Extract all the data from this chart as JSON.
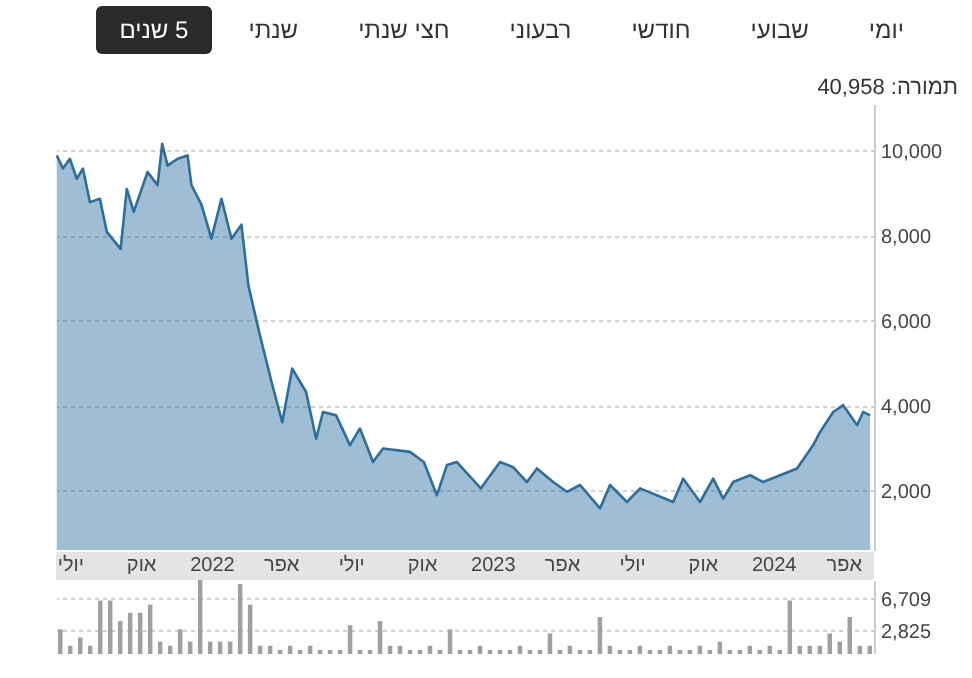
{
  "chart_data": [
    {
      "type": "area",
      "annotations": [
        "יומי",
        "שבועי",
        "חודשי",
        "רבעוני",
        "חצי שנתי",
        "שנתי",
        "5 שנים",
        "תמורה: 40,958"
      ],
      "x": [
        "2021-06-14",
        "2021-06-22",
        "2021-07-01",
        "2021-07-10",
        "2021-07-18",
        "2021-07-27",
        "2021-08-09",
        "2021-08-18",
        "2021-09-05",
        "2021-09-13",
        "2021-09-22",
        "2021-10-10",
        "2021-10-23",
        "2021-10-29",
        "2021-11-05",
        "2021-11-18",
        "2021-12-01",
        "2021-12-06",
        "2021-12-19",
        "2022-01-01",
        "2022-01-14",
        "2022-01-27",
        "2022-02-09",
        "2022-02-18",
        "2022-03-04",
        "2022-03-21",
        "2022-04-03",
        "2022-04-16",
        "2022-05-04",
        "2022-05-17",
        "2022-05-26",
        "2022-06-12",
        "2022-06-30",
        "2022-07-13",
        "2022-07-30",
        "2022-08-12",
        "2022-09-16",
        "2022-10-04",
        "2022-10-21",
        "2022-11-03",
        "2022-11-16",
        "2022-12-17",
        "2023-01-11",
        "2023-01-28",
        "2023-02-15",
        "2023-02-28",
        "2023-03-21",
        "2023-04-08",
        "2023-04-25",
        "2023-05-21",
        "2023-06-03",
        "2023-06-25",
        "2023-07-12",
        "2023-08-24",
        "2023-09-06",
        "2023-09-28",
        "2023-10-15",
        "2023-10-28",
        "2023-11-10",
        "2023-12-02",
        "2023-12-19",
        "2024-01-10",
        "2024-02-01",
        "2024-02-22",
        "2024-03-02",
        "2024-03-19",
        "2024-04-01",
        "2024-04-19",
        "2024-04-27",
        "2024-05-06"
      ],
      "series": [
        {
          "color": "#2b6f9f",
          "values": [
            9890,
            9580,
            9810,
            9340,
            9580,
            8790,
            8870,
            8090,
            7690,
            9100,
            8560,
            9500,
            9190,
            10160,
            9650,
            9810,
            9890,
            9190,
            8730,
            7930,
            8870,
            7930,
            8260,
            6830,
            5730,
            4490,
            3610,
            4870,
            4320,
            3220,
            3850,
            3770,
            3070,
            3460,
            2670,
            2990,
            2910,
            2670,
            1890,
            2600,
            2670,
            2050,
            2670,
            2550,
            2200,
            2520,
            2200,
            1970,
            2130,
            1580,
            2130,
            1730,
            2050,
            1730,
            2280,
            1730,
            2280,
            1810,
            2200,
            2360,
            2200,
            2360,
            2520,
            3070,
            3380,
            3850,
            4010,
            3540,
            3850,
            3770
          ]
        }
      ],
      "xlim": [
        "2021-06-13",
        "2024-05-11"
      ],
      "xticks": [
        {
          "value": "2021-07-01",
          "label": "יולי"
        },
        {
          "value": "2021-10-01",
          "label": "אוק"
        },
        {
          "value": "2022-01-01",
          "label": "2022"
        },
        {
          "value": "2022-04-01",
          "label": "אפר"
        },
        {
          "value": "2022-07-01",
          "label": "יולי"
        },
        {
          "value": "2022-10-01",
          "label": "אוק"
        },
        {
          "value": "2023-01-01",
          "label": "2023"
        },
        {
          "value": "2023-04-01",
          "label": "אפר"
        },
        {
          "value": "2023-07-01",
          "label": "יולי"
        },
        {
          "value": "2023-10-01",
          "label": "אוק"
        },
        {
          "value": "2024-01-01",
          "label": "2024"
        },
        {
          "value": "2024-04-01",
          "label": "אפר"
        }
      ],
      "ylim": [
        600,
        11100
      ],
      "yticks": [
        {
          "value": 2000,
          "label": "2,000"
        },
        {
          "value": 4000,
          "label": "4,000"
        },
        {
          "value": 6000,
          "label": "6,000"
        },
        {
          "value": 8000,
          "label": "8,000"
        },
        {
          "value": 10000,
          "label": "10,000"
        }
      ],
      "grid": "y"
    },
    {
      "type": "bar",
      "categories": [
        null,
        null,
        null,
        null,
        null,
        null,
        null,
        null,
        null,
        null,
        null,
        null,
        null,
        null,
        null,
        null,
        null,
        null,
        null,
        null,
        null,
        null,
        null,
        null,
        null,
        null,
        null,
        null,
        null,
        null,
        null,
        null,
        null,
        null,
        null,
        null,
        null,
        null,
        null,
        null,
        null,
        null,
        null,
        null,
        null,
        null,
        null,
        null,
        null,
        null,
        null,
        null,
        null,
        null,
        null,
        null,
        null,
        null,
        null,
        null,
        null,
        null,
        null,
        null,
        null,
        null,
        null,
        null,
        null,
        null,
        null,
        null,
        null,
        null,
        null,
        null,
        null,
        null,
        null,
        null,
        null,
        null
      ],
      "series": [
        {
          "color": "#a0a0a0",
          "values": [
            3000,
            1000,
            2000,
            1000,
            6500,
            6500,
            4000,
            5000,
            5000,
            6000,
            1500,
            1000,
            3000,
            1500,
            9000,
            1500,
            1500,
            1500,
            8500,
            6000,
            1000,
            1000,
            500,
            1000,
            500,
            1000,
            500,
            500,
            500,
            3500,
            500,
            500,
            4000,
            1000,
            1000,
            500,
            500,
            1000,
            500,
            3000,
            500,
            500,
            1000,
            500,
            500,
            500,
            1000,
            500,
            500,
            2500,
            500,
            1000,
            500,
            500,
            4500,
            1000,
            500,
            500,
            1000,
            500,
            500,
            1000,
            500,
            500,
            1000,
            500,
            1500,
            500,
            500,
            1000,
            500,
            1000,
            500,
            6500,
            1000,
            1000,
            1000,
            2500,
            1500,
            4500,
            1000,
            1000
          ]
        }
      ],
      "ylim": [
        0,
        9000
      ],
      "yticks": [
        {
          "value": 2825,
          "label": "2,825"
        },
        {
          "value": 6709,
          "label": "6,709"
        }
      ],
      "grid": "y",
      "tick_labels": "y"
    }
  ]
}
